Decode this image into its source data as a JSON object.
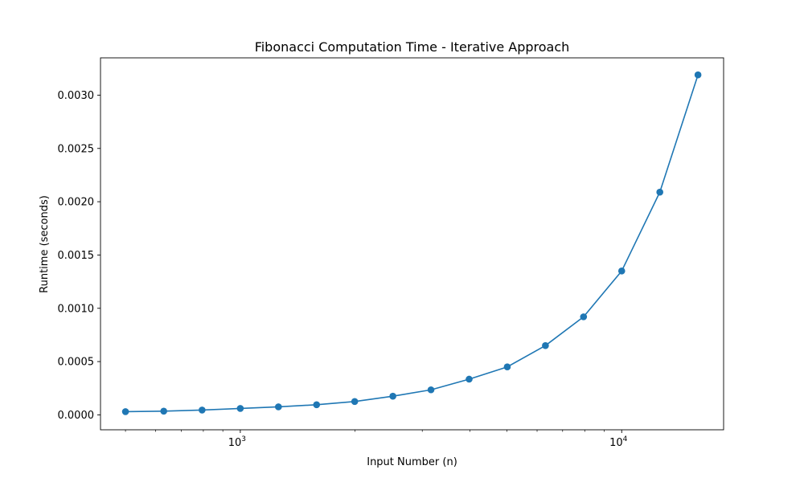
{
  "chart_data": {
    "type": "line",
    "title": "Fibonacci Computation Time - Iterative Approach",
    "xlabel": "Input Number (n)",
    "ylabel": "Runtime (seconds)",
    "x_scale": "log",
    "xlim": [
      430,
      18500
    ],
    "ylim": [
      -0.00014,
      0.00335
    ],
    "grid": false,
    "x_major_ticks": [
      {
        "value": 1000,
        "base": "10",
        "exp": "3"
      },
      {
        "value": 10000,
        "base": "10",
        "exp": "4"
      }
    ],
    "y_ticks": [
      {
        "value": 0.0,
        "label": "0.0000"
      },
      {
        "value": 0.0005,
        "label": "0.0005"
      },
      {
        "value": 0.001,
        "label": "0.0010"
      },
      {
        "value": 0.0015,
        "label": "0.0015"
      },
      {
        "value": 0.002,
        "label": "0.0020"
      },
      {
        "value": 0.0025,
        "label": "0.0025"
      },
      {
        "value": 0.003,
        "label": "0.0030"
      }
    ],
    "series": [
      {
        "color": "#1f77b4",
        "marker": "circle",
        "x": [
          500,
          630,
          794,
          1000,
          1259,
          1585,
          1995,
          2512,
          3162,
          3981,
          5012,
          6310,
          7943,
          10000,
          12589,
          15849
        ],
        "y": [
          3e-05,
          3.5e-05,
          4.5e-05,
          6e-05,
          7.5e-05,
          9.5e-05,
          0.000125,
          0.000175,
          0.000235,
          0.000335,
          0.00045,
          0.00065,
          0.00092,
          0.00135,
          0.00209,
          0.00319
        ]
      }
    ]
  }
}
